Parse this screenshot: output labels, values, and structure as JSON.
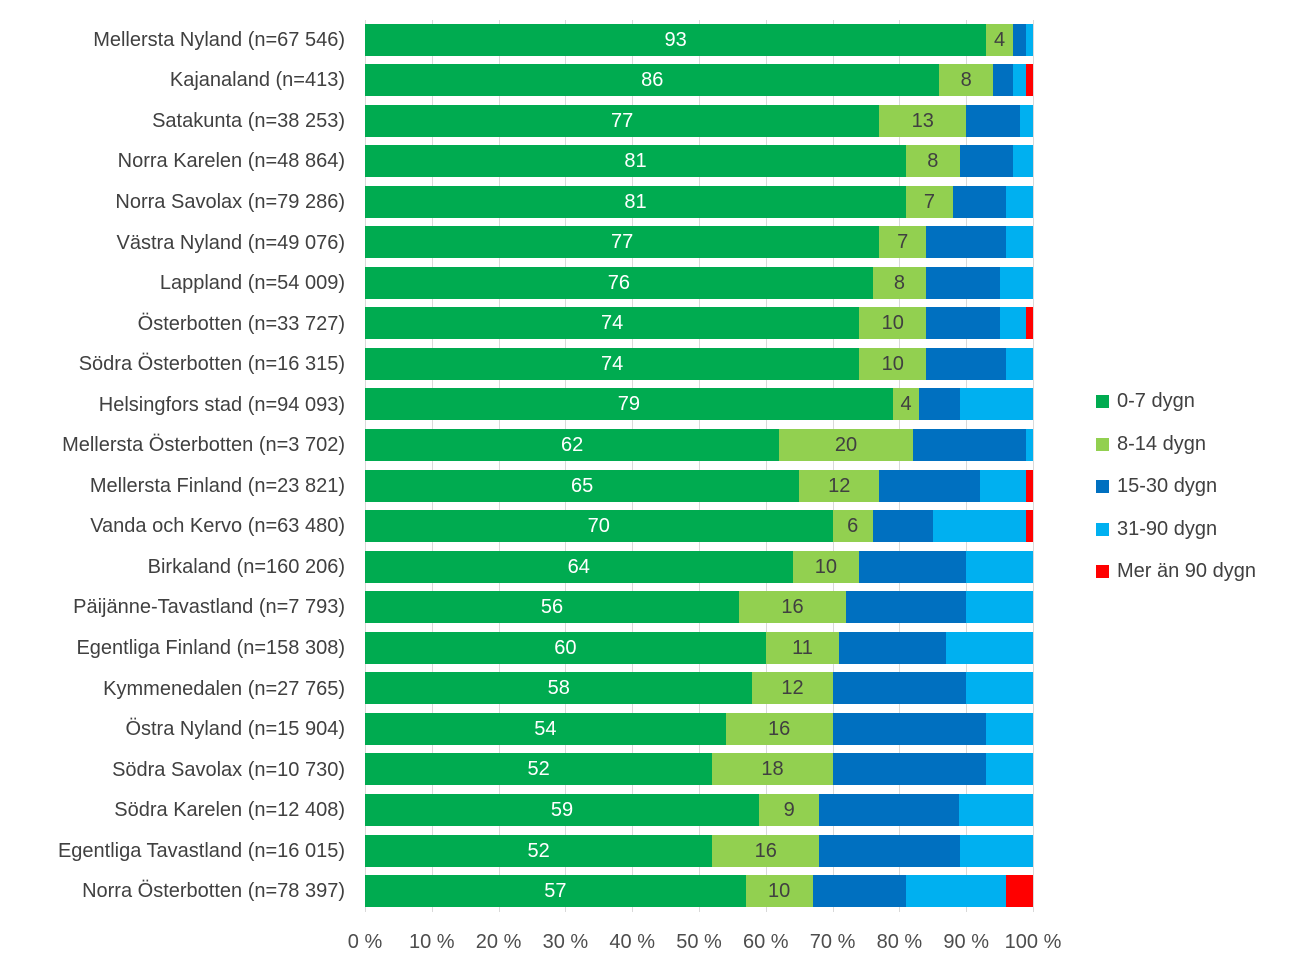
{
  "chart_data": {
    "type": "bar",
    "orientation": "horizontal-stacked",
    "unit": "%",
    "xlim": [
      0,
      100
    ],
    "grid": true,
    "legend_position": "right",
    "x_ticks": [
      "0 %",
      "10 %",
      "20 %",
      "30 %",
      "40 %",
      "50 %",
      "60 %",
      "70 %",
      "80 %",
      "90 %",
      "100 %"
    ],
    "series_labels": [
      "0-7 dygn",
      "8-14 dygn",
      "15-30 dygn",
      "31-90 dygn",
      "Mer än 90 dygn"
    ],
    "series_colors": [
      "#00AB50",
      "#92D050",
      "#0070C0",
      "#00B0F0",
      "#FF0000"
    ],
    "value_label_colors": [
      "#ffffff",
      "#404040"
    ],
    "rows": [
      {
        "label": "Mellersta Nyland (n=67 546)",
        "values": [
          93,
          4,
          2,
          1,
          0
        ]
      },
      {
        "label": "Kajanaland (n=413)",
        "values": [
          86,
          8,
          3,
          2,
          1
        ]
      },
      {
        "label": "Satakunta (n=38 253)",
        "values": [
          77,
          13,
          8,
          2,
          0
        ]
      },
      {
        "label": "Norra Karelen (n=48 864)",
        "values": [
          81,
          8,
          8,
          3,
          0
        ]
      },
      {
        "label": "Norra Savolax (n=79 286)",
        "values": [
          81,
          7,
          8,
          4,
          0
        ]
      },
      {
        "label": "Västra Nyland (n=49 076)",
        "values": [
          77,
          7,
          12,
          4,
          0
        ]
      },
      {
        "label": "Lappland (n=54 009)",
        "values": [
          76,
          8,
          11,
          5,
          0
        ]
      },
      {
        "label": "Österbotten (n=33 727)",
        "values": [
          74,
          10,
          11,
          4,
          1
        ]
      },
      {
        "label": "Södra Österbotten (n=16 315)",
        "values": [
          74,
          10,
          12,
          4,
          0
        ]
      },
      {
        "label": "Helsingfors stad (n=94 093)",
        "values": [
          79,
          4,
          6,
          11,
          0
        ]
      },
      {
        "label": "Mellersta Österbotten (n=3 702)",
        "values": [
          62,
          20,
          17,
          1,
          0
        ]
      },
      {
        "label": "Mellersta Finland (n=23 821)",
        "values": [
          65,
          12,
          15,
          7,
          1
        ]
      },
      {
        "label": "Vanda och Kervo (n=63 480)",
        "values": [
          70,
          6,
          9,
          14,
          1
        ]
      },
      {
        "label": "Birkaland (n=160 206)",
        "values": [
          64,
          10,
          16,
          10,
          0
        ]
      },
      {
        "label": "Päijänne-Tavastland (n=7 793)",
        "values": [
          56,
          16,
          18,
          10,
          0
        ]
      },
      {
        "label": "Egentliga Finland (n=158 308)",
        "values": [
          60,
          11,
          16,
          13,
          0
        ]
      },
      {
        "label": "Kymmenedalen (n=27 765)",
        "values": [
          58,
          12,
          20,
          10,
          0
        ]
      },
      {
        "label": "Östra Nyland (n=15 904)",
        "values": [
          54,
          16,
          23,
          7,
          0
        ]
      },
      {
        "label": "Södra Savolax (n=10 730)",
        "values": [
          52,
          18,
          23,
          7,
          0
        ]
      },
      {
        "label": "Södra Karelen (n=12 408)",
        "values": [
          59,
          9,
          21,
          11,
          0
        ]
      },
      {
        "label": "Egentliga Tavastland (n=16 015)",
        "values": [
          52,
          16,
          21,
          11,
          0
        ]
      },
      {
        "label": "Norra Österbotten (n=78 397)",
        "values": [
          57,
          10,
          14,
          15,
          4
        ]
      }
    ],
    "labeled_segment_indices": [
      0,
      1
    ]
  }
}
